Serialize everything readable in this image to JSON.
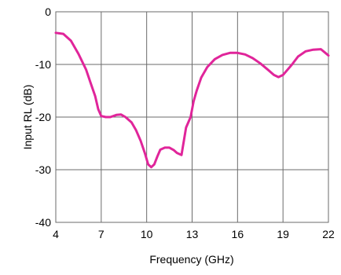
{
  "chart_data": {
    "type": "line",
    "title": "",
    "xlabel": "Frequency (GHz)",
    "ylabel": "Input RL (dB)",
    "xlim": [
      4,
      22
    ],
    "ylim": [
      -40,
      0
    ],
    "grid": true,
    "x_ticks": [
      4,
      7,
      10,
      13,
      16,
      19,
      22
    ],
    "x_tick_labels": [
      "4",
      "7",
      "10",
      "13",
      "16",
      "19",
      "22"
    ],
    "y_ticks": [
      0,
      -10,
      -20,
      -30,
      -40
    ],
    "y_tick_labels": [
      "0",
      "-10",
      "-20",
      "-30",
      "-40"
    ],
    "series": [
      {
        "color": "#e0259a",
        "x": [
          4.0,
          4.5,
          5.0,
          5.5,
          6.0,
          6.3,
          6.6,
          6.8,
          7.0,
          7.3,
          7.6,
          8.0,
          8.3,
          8.6,
          9.0,
          9.3,
          9.6,
          9.9,
          10.1,
          10.3,
          10.5,
          10.7,
          10.9,
          11.2,
          11.5,
          11.8,
          12.0,
          12.3,
          12.6,
          12.9,
          13.1,
          13.3,
          13.6,
          14.0,
          14.5,
          15.0,
          15.5,
          16.0,
          16.5,
          17.0,
          17.5,
          18.0,
          18.4,
          18.7,
          19.0,
          19.3,
          19.6,
          20.0,
          20.5,
          21.0,
          21.5,
          21.8,
          22.0
        ],
        "y": [
          -4.0,
          -4.2,
          -5.5,
          -8.0,
          -11.0,
          -13.5,
          -16.0,
          -18.5,
          -19.8,
          -20.0,
          -20.0,
          -19.6,
          -19.5,
          -20.0,
          -21.0,
          -22.5,
          -24.5,
          -27.0,
          -29.0,
          -29.5,
          -29.0,
          -27.5,
          -26.2,
          -25.8,
          -25.8,
          -26.3,
          -26.8,
          -27.2,
          -22.0,
          -20.0,
          -17.0,
          -15.0,
          -12.5,
          -10.5,
          -9.0,
          -8.2,
          -7.8,
          -7.8,
          -8.1,
          -8.8,
          -9.8,
          -11.0,
          -12.0,
          -12.4,
          -12.0,
          -11.0,
          -10.0,
          -8.5,
          -7.5,
          -7.2,
          -7.1,
          -7.8,
          -8.3
        ]
      }
    ]
  }
}
